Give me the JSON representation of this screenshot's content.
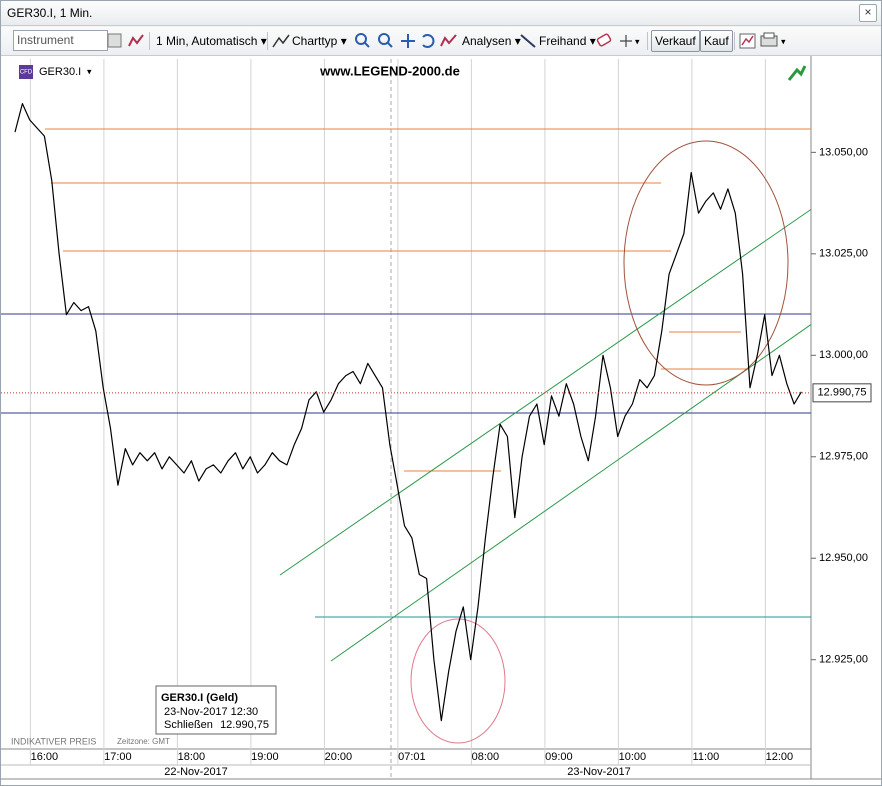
{
  "window": {
    "title": "GER30.I, 1 Min."
  },
  "toolbar": {
    "instrument_placeholder": "Instrument",
    "interval": "1 Min,  Automatisch",
    "chart_type": "Charttyp",
    "analyses": "Analysen",
    "freehand": "Freihand",
    "sell": "Verkauf",
    "buy": "Kauf"
  },
  "chart_header": {
    "badge": "CFD",
    "symbol": "GER30.I",
    "watermark": "www.LEGEND-2000.de"
  },
  "info_box": {
    "title": "GER30.I (Geld)",
    "datetime": "23-Nov-2017 12:30",
    "close_label": "Schließen"
  },
  "footer": {
    "price_note": "INDIKATIVER PREIS",
    "timezone": "Zeitzone: GMT"
  },
  "date_labels": [
    "22-Nov-2017",
    "23-Nov-2017"
  ],
  "chart_data": {
    "type": "line",
    "color": "#000000",
    "categories": [
      null,
      null,
      null,
      null,
      "16:00",
      null,
      null,
      null,
      null,
      null,
      null,
      null,
      null,
      null,
      "17:00",
      null,
      null,
      null,
      null,
      null,
      null,
      null,
      null,
      null,
      "18:00",
      null,
      null,
      null,
      null,
      null,
      null,
      null,
      null,
      null,
      "19:00",
      null,
      null,
      null,
      null,
      null,
      null,
      null,
      null,
      null,
      "20:00",
      null,
      null,
      null,
      null,
      null,
      null,
      null,
      null,
      null,
      "07:01",
      null,
      null,
      null,
      null,
      null,
      null,
      null,
      null,
      null,
      "08:00",
      null,
      null,
      null,
      null,
      null,
      null,
      null,
      null,
      null,
      "09:00",
      null,
      null,
      null,
      null,
      null,
      null,
      null,
      null,
      null,
      "10:00",
      null,
      null,
      null,
      null,
      null,
      null,
      null,
      null,
      null,
      "11:00",
      null,
      null,
      null,
      null,
      null,
      null,
      null,
      null,
      null,
      "12:00",
      null,
      null,
      null
    ],
    "values": [
      13055,
      13062,
      13058,
      13056,
      13054,
      13043,
      13025,
      13010,
      13013,
      13011,
      13012,
      13006,
      12992,
      12982,
      12968,
      12977,
      12973,
      12976,
      12974,
      12976,
      12972,
      12975,
      12973,
      12971,
      12974,
      12969,
      12972,
      12973,
      12971,
      12974,
      12976,
      12972,
      12975,
      12971,
      12973,
      12976,
      12974,
      12973,
      12978,
      12982,
      12989,
      12991,
      12986,
      12989,
      12993,
      12995,
      12996,
      12993,
      12998,
      12995,
      12992,
      12978,
      12968,
      12958,
      12955,
      12946,
      12945,
      12925,
      12910,
      12922,
      12932,
      12938,
      12925,
      12938,
      12955,
      12970,
      12983,
      12980,
      12960,
      12975,
      12985,
      12988,
      12978,
      12990,
      12985,
      12993,
      12988,
      12980,
      12974,
      12985,
      13000,
      12992,
      12980,
      12985,
      12988,
      12994,
      12992,
      12995,
      13006,
      13020,
      13025,
      13030,
      13045,
      13035,
      13038,
      13040,
      13036,
      13041,
      13035,
      13020,
      12992,
      13000,
      13010,
      12995,
      13000,
      12993,
      12988,
      12991
    ],
    "ylim": [
      12903,
      13073
    ],
    "yticks": [
      {
        "value": 12925,
        "label": "12.925,00"
      },
      {
        "value": 12950,
        "label": "12.950,00"
      },
      {
        "value": 12975,
        "label": "12.975,00"
      },
      {
        "value": 13000,
        "label": "13.000,00"
      },
      {
        "value": 13025,
        "label": "13.025,00"
      },
      {
        "value": 13050,
        "label": "13.050,00"
      }
    ],
    "last_price": {
      "value": 12990.75,
      "label": "12.990,75"
    }
  }
}
